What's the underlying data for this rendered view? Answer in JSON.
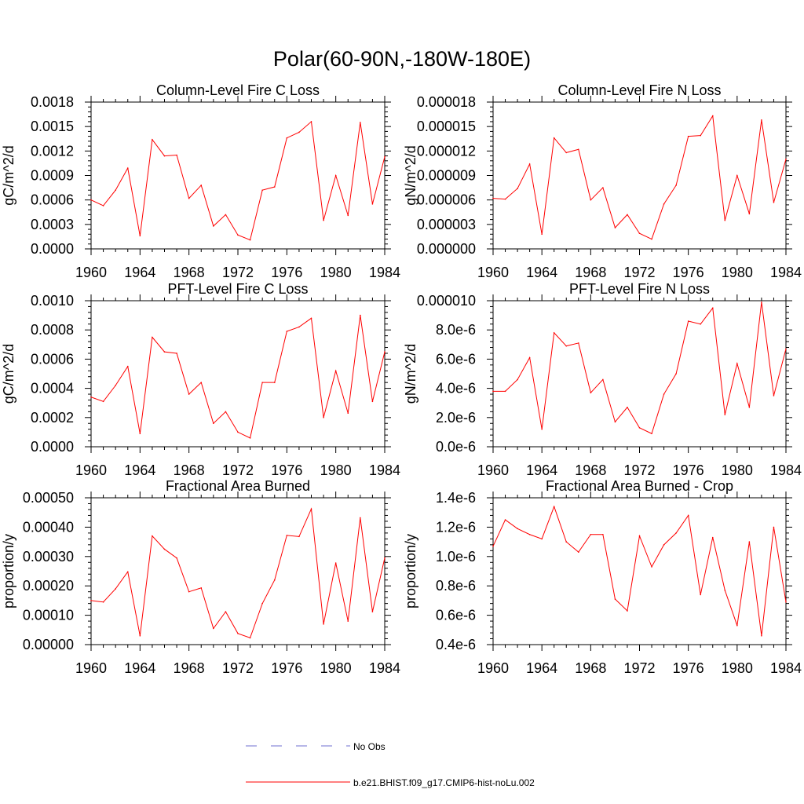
{
  "title": "Polar(60-90N,-180W-180E)",
  "colors": {
    "series": "#ff0000",
    "obs": "#6f6fd0",
    "axis": "#000000"
  },
  "legend": {
    "entries": [
      {
        "label": "No Obs",
        "style": "dashed",
        "color": "#6f6fd0"
      },
      {
        "label": "b.e21.BHIST.f09_g17.CMIP6-hist-noLu.002",
        "style": "solid",
        "color": "#ff0000"
      }
    ]
  },
  "chart_data": [
    {
      "type": "line",
      "title": "Column-Level Fire C Loss",
      "ylabel": "gC/m^2/d",
      "xlabel": "",
      "x": [
        1960,
        1961,
        1962,
        1963,
        1964,
        1965,
        1966,
        1967,
        1968,
        1969,
        1970,
        1971,
        1972,
        1973,
        1974,
        1975,
        1976,
        1977,
        1978,
        1979,
        1980,
        1981,
        1982,
        1983,
        1984
      ],
      "xlim": [
        1960,
        1984
      ],
      "xticks": [
        "1960",
        "1964",
        "1968",
        "1972",
        "1976",
        "1980",
        "1984"
      ],
      "ylim": [
        0,
        0.0018
      ],
      "yticks": [
        "0.0000",
        "0.0003",
        "0.0006",
        "0.0009",
        "0.0012",
        "0.0015",
        "0.0018"
      ],
      "series": [
        {
          "values": [
            0.0006,
            0.00053,
            0.00072,
            0.00099,
            0.00016,
            0.00134,
            0.00114,
            0.00115,
            0.00062,
            0.00078,
            0.00028,
            0.00042,
            0.00017,
            0.00011,
            0.00072,
            0.00076,
            0.00136,
            0.00143,
            0.00156,
            0.00035,
            0.0009,
            0.00041,
            0.00155,
            0.00055,
            0.00113
          ]
        }
      ]
    },
    {
      "type": "line",
      "title": "Column-Level Fire N Loss",
      "ylabel": "gN/m^2/d",
      "xlabel": "",
      "x": [
        1960,
        1961,
        1962,
        1963,
        1964,
        1965,
        1966,
        1967,
        1968,
        1969,
        1970,
        1971,
        1972,
        1973,
        1974,
        1975,
        1976,
        1977,
        1978,
        1979,
        1980,
        1981,
        1982,
        1983,
        1984
      ],
      "xlim": [
        1960,
        1984
      ],
      "xticks": [
        "1960",
        "1964",
        "1968",
        "1972",
        "1976",
        "1980",
        "1984"
      ],
      "ylim": [
        0,
        1.8e-05
      ],
      "yticks": [
        "0.000000",
        "0.000003",
        "0.000006",
        "0.000009",
        "0.000012",
        "0.000015",
        "0.000018"
      ],
      "series": [
        {
          "values": [
            6.2e-06,
            6.1e-06,
            7.4e-06,
            1.04e-05,
            1.8e-06,
            1.36e-05,
            1.18e-05,
            1.22e-05,
            6e-06,
            7.5e-06,
            2.6e-06,
            4.2e-06,
            1.9e-06,
            1.2e-06,
            5.5e-06,
            7.8e-06,
            1.38e-05,
            1.39e-05,
            1.63e-05,
            3.5e-06,
            9e-06,
            4.3e-06,
            1.58e-05,
            5.7e-06,
            1.1e-05
          ]
        }
      ]
    },
    {
      "type": "line",
      "title": "PFT-Level Fire C Loss",
      "ylabel": "gC/m^2/d",
      "xlabel": "",
      "x": [
        1960,
        1961,
        1962,
        1963,
        1964,
        1965,
        1966,
        1967,
        1968,
        1969,
        1970,
        1971,
        1972,
        1973,
        1974,
        1975,
        1976,
        1977,
        1978,
        1979,
        1980,
        1981,
        1982,
        1983,
        1984
      ],
      "xlim": [
        1960,
        1984
      ],
      "xticks": [
        "1960",
        "1964",
        "1968",
        "1972",
        "1976",
        "1980",
        "1984"
      ],
      "ylim": [
        0,
        0.001
      ],
      "yticks": [
        "0.0000",
        "0.0002",
        "0.0004",
        "0.0006",
        "0.0008",
        "0.0010"
      ],
      "series": [
        {
          "values": [
            0.00034,
            0.00031,
            0.00042,
            0.00055,
            9e-05,
            0.00075,
            0.00065,
            0.00064,
            0.00036,
            0.00044,
            0.00016,
            0.00024,
            0.0001,
            6e-05,
            0.00044,
            0.00044,
            0.00079,
            0.00082,
            0.00088,
            0.0002,
            0.00052,
            0.00023,
            0.0009,
            0.00031,
            0.00065
          ]
        }
      ]
    },
    {
      "type": "line",
      "title": "PFT-Level Fire N Loss",
      "ylabel": "gN/m^2/d",
      "xlabel": "",
      "x": [
        1960,
        1961,
        1962,
        1963,
        1964,
        1965,
        1966,
        1967,
        1968,
        1969,
        1970,
        1971,
        1972,
        1973,
        1974,
        1975,
        1976,
        1977,
        1978,
        1979,
        1980,
        1981,
        1982,
        1983,
        1984
      ],
      "xlim": [
        1960,
        1984
      ],
      "xticks": [
        "1960",
        "1964",
        "1968",
        "1972",
        "1976",
        "1980",
        "1984"
      ],
      "ylim": [
        0,
        1e-05
      ],
      "yticks": [
        "0.0e-6",
        "2.0e-6",
        "4.0e-6",
        "6.0e-6",
        "8.0e-6",
        "0.000010"
      ],
      "series": [
        {
          "values": [
            3.8e-06,
            3.8e-06,
            4.6e-06,
            6.1e-06,
            1.2e-06,
            7.8e-06,
            6.9e-06,
            7.1e-06,
            3.7e-06,
            4.6e-06,
            1.7e-06,
            2.7e-06,
            1.3e-06,
            9e-07,
            3.6e-06,
            5e-06,
            8.6e-06,
            8.4e-06,
            9.5e-06,
            2.2e-06,
            5.7e-06,
            2.7e-06,
            9.9e-06,
            3.5e-06,
            6.7e-06
          ]
        }
      ]
    },
    {
      "type": "line",
      "title": "Fractional Area Burned",
      "ylabel": "proportion/y",
      "xlabel": "",
      "x": [
        1960,
        1961,
        1962,
        1963,
        1964,
        1965,
        1966,
        1967,
        1968,
        1969,
        1970,
        1971,
        1972,
        1973,
        1974,
        1975,
        1976,
        1977,
        1978,
        1979,
        1980,
        1981,
        1982,
        1983,
        1984
      ],
      "xlim": [
        1960,
        1984
      ],
      "xticks": [
        "1960",
        "1964",
        "1968",
        "1972",
        "1976",
        "1980",
        "1984"
      ],
      "ylim": [
        0,
        0.0005
      ],
      "yticks": [
        "0.00000",
        "0.00010",
        "0.00020",
        "0.00030",
        "0.00040",
        "0.00050"
      ],
      "series": [
        {
          "values": [
            0.00015,
            0.000145,
            0.00019,
            0.000248,
            3e-05,
            0.00037,
            0.000325,
            0.000295,
            0.00018,
            0.000193,
            5.5e-05,
            0.000112,
            3.8e-05,
            2.3e-05,
            0.00014,
            0.00022,
            0.000372,
            0.000368,
            0.000462,
            7e-05,
            0.000278,
            8e-05,
            0.000432,
            0.000112,
            0.000295
          ]
        }
      ]
    },
    {
      "type": "line",
      "title": "Fractional Area Burned - Crop",
      "ylabel": "proportion/y",
      "xlabel": "",
      "x": [
        1960,
        1961,
        1962,
        1963,
        1964,
        1965,
        1966,
        1967,
        1968,
        1969,
        1970,
        1971,
        1972,
        1973,
        1974,
        1975,
        1976,
        1977,
        1978,
        1979,
        1980,
        1981,
        1982,
        1983,
        1984
      ],
      "xlim": [
        1960,
        1984
      ],
      "xticks": [
        "1960",
        "1964",
        "1968",
        "1972",
        "1976",
        "1980",
        "1984"
      ],
      "ylim": [
        4e-07,
        1.4e-06
      ],
      "yticks": [
        "0.4e-6",
        "0.6e-6",
        "0.8e-6",
        "1.0e-6",
        "1.2e-6",
        "1.4e-6"
      ],
      "series": [
        {
          "values": [
            1.07e-06,
            1.25e-06,
            1.19e-06,
            1.15e-06,
            1.12e-06,
            1.34e-06,
            1.1e-06,
            1.03e-06,
            1.15e-06,
            1.15e-06,
            7.1e-07,
            6.3e-07,
            1.14e-06,
            9.3e-07,
            1.08e-06,
            1.16e-06,
            1.28e-06,
            7.4e-07,
            1.13e-06,
            7.7e-07,
            5.3e-07,
            1.1e-06,
            4.6e-07,
            1.2e-06,
            6.9e-07
          ]
        }
      ]
    }
  ]
}
